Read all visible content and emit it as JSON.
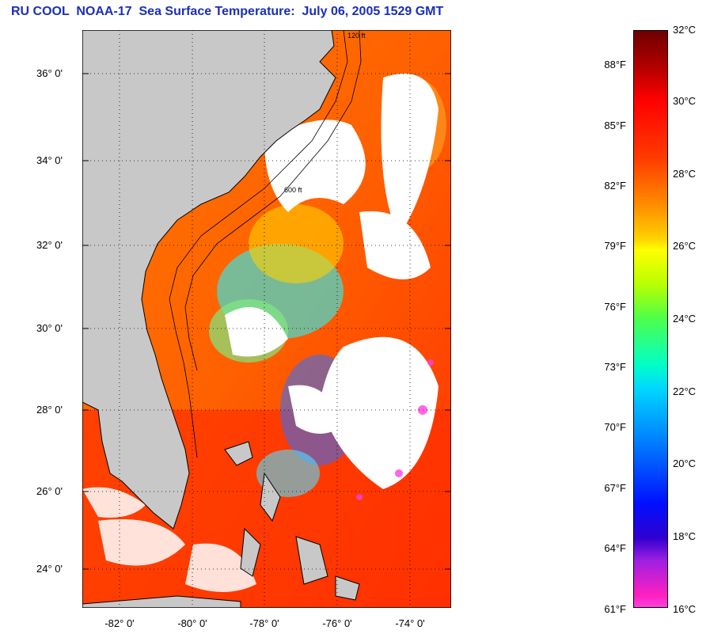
{
  "title": "RU COOL  NOAA-17  Sea Surface Temperature:  July 06, 2005 1529 GMT",
  "map": {
    "latitude_labels": [
      "36° 0'",
      "34° 0'",
      "32° 0'",
      "30° 0'",
      "28° 0'",
      "26° 0'",
      "24° 0'"
    ],
    "longitude_labels": [
      "-82° 0'",
      "-80° 0'",
      "-78° 0'",
      "-76° 0'",
      "-74° 0'"
    ],
    "depth_contour_labels": [
      "120 ft",
      "600 ft"
    ],
    "colors": {
      "land": "#c8c8c8",
      "cloud": "#ffffff",
      "coastline": "#000000"
    }
  },
  "colorbar": {
    "celsius_labels": [
      "32°C",
      "30°C",
      "28°C",
      "26°C",
      "24°C",
      "22°C",
      "20°C",
      "18°C",
      "16°C"
    ],
    "fahrenheit_labels": [
      "88°F",
      "85°F",
      "82°F",
      "79°F",
      "76°F",
      "73°F",
      "70°F",
      "67°F",
      "64°F",
      "61°F"
    ]
  }
}
